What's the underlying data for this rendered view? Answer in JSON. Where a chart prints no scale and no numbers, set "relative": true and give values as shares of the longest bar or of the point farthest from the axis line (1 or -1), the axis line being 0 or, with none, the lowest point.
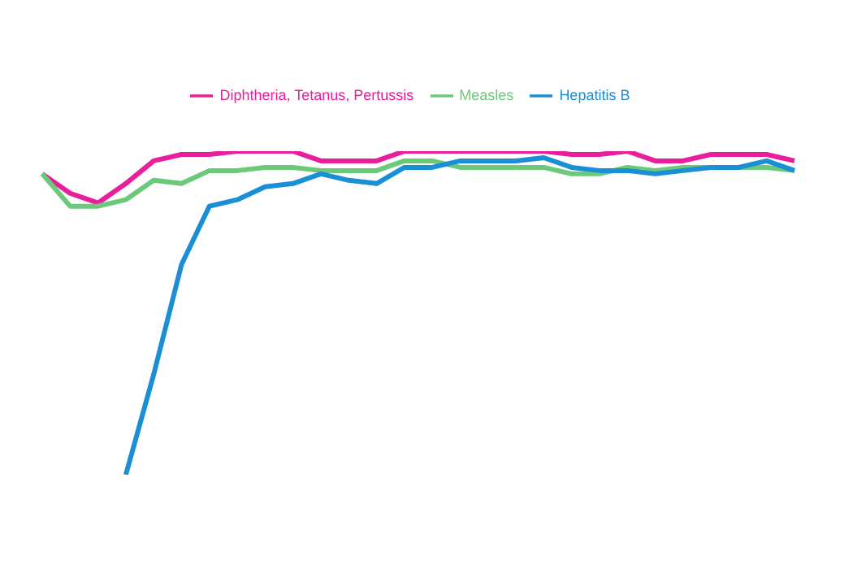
{
  "chart_data": {
    "type": "line",
    "relative": true,
    "categories": [
      null,
      null,
      null,
      null,
      null,
      null,
      null,
      null,
      null,
      null,
      null,
      null,
      null,
      null,
      null,
      null,
      null,
      null,
      null,
      null,
      null,
      null,
      null,
      null,
      null,
      null,
      null,
      null
    ],
    "legend": "top",
    "grid": false,
    "marker": "none",
    "line_style": "solid",
    "series": [
      {
        "name": "Diphtheria, Tetanus, Pertussis",
        "color": "#e91e9c",
        "values": [
          0.93,
          0.87,
          0.84,
          0.9,
          0.97,
          0.99,
          0.99,
          1,
          1,
          1,
          0.97,
          0.97,
          0.97,
          1,
          1,
          1,
          1,
          1,
          1,
          0.99,
          0.99,
          1,
          0.97,
          0.97,
          0.99,
          0.99,
          0.99,
          0.97
        ]
      },
      {
        "name": "Measles",
        "color": "#6cc97a",
        "values": [
          0.93,
          0.83,
          0.83,
          0.85,
          0.91,
          0.9,
          0.94,
          0.94,
          0.95,
          0.95,
          0.94,
          0.94,
          0.94,
          0.97,
          0.97,
          0.95,
          0.95,
          0.95,
          0.95,
          0.93,
          0.93,
          0.95,
          0.94,
          0.95,
          0.95,
          0.95,
          0.95,
          0.94
        ]
      },
      {
        "name": "Hepatitis B",
        "color": "#1a8fd6",
        "values": [
          null,
          null,
          null,
          0,
          0.31,
          0.65,
          0.83,
          0.85,
          0.89,
          0.9,
          0.93,
          0.91,
          0.9,
          0.95,
          0.95,
          0.97,
          0.97,
          0.97,
          0.98,
          0.95,
          0.94,
          0.94,
          0.93,
          0.94,
          0.95,
          0.95,
          0.97,
          0.94
        ]
      }
    ]
  }
}
